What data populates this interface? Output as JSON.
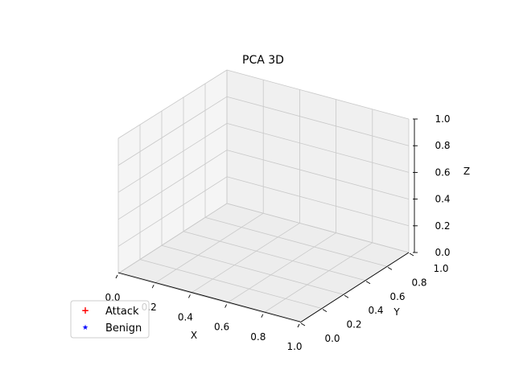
{
  "chart_data": {
    "type": "scatter",
    "projection": "3d",
    "title": "PCA 3D",
    "xlabel": "X",
    "ylabel": "Y",
    "zlabel": "Z",
    "xlim": [
      0.0,
      1.0
    ],
    "ylim": [
      0.0,
      1.0
    ],
    "zlim": [
      0.0,
      1.0
    ],
    "grid": true,
    "legend_position": "lower-left",
    "x_ticks": [
      "0.0",
      "0.2",
      "0.4",
      "0.6",
      "0.8",
      "1.0"
    ],
    "y_ticks": [
      "0.0",
      "0.2",
      "0.4",
      "0.6",
      "0.8",
      "1.0"
    ],
    "z_ticks": [
      "0.0",
      "0.2",
      "0.4",
      "0.6",
      "0.8",
      "1.0"
    ],
    "series": [
      {
        "name": "Attack",
        "marker": "+",
        "color": "#ff0000",
        "points": []
      },
      {
        "name": "Benign",
        "marker": "*",
        "color": "#0000ff",
        "points": []
      }
    ]
  }
}
